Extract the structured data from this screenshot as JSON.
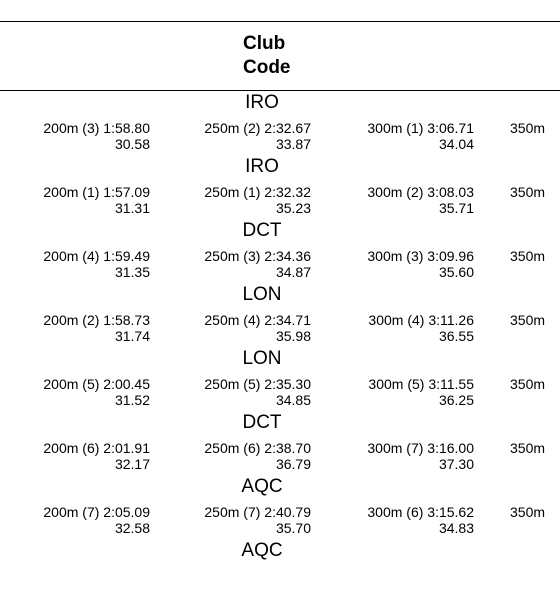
{
  "header": {
    "title": [
      "Club",
      "Code"
    ]
  },
  "rows": [
    {
      "code": "IRO",
      "splits": [
        {
          "label": "200m (3) 1:58.80",
          "lap": "30.58"
        },
        {
          "label": "250m (2) 2:32.67",
          "lap": "33.87"
        },
        {
          "label": "300m (1) 3:06.71",
          "lap": "34.04"
        },
        {
          "label": "350m"
        }
      ]
    },
    {
      "code": "IRO",
      "splits": [
        {
          "label": "200m (1) 1:57.09",
          "lap": "31.31"
        },
        {
          "label": "250m (1) 2:32.32",
          "lap": "35.23"
        },
        {
          "label": "300m (2) 3:08.03",
          "lap": "35.71"
        },
        {
          "label": "350m"
        }
      ]
    },
    {
      "code": "DCT",
      "splits": [
        {
          "label": "200m (4) 1:59.49",
          "lap": "31.35"
        },
        {
          "label": "250m (3) 2:34.36",
          "lap": "34.87"
        },
        {
          "label": "300m (3) 3:09.96",
          "lap": "35.60"
        },
        {
          "label": "350m"
        }
      ]
    },
    {
      "code": "LON",
      "splits": [
        {
          "label": "200m (2) 1:58.73",
          "lap": "31.74"
        },
        {
          "label": "250m (4) 2:34.71",
          "lap": "35.98"
        },
        {
          "label": "300m (4) 3:11.26",
          "lap": "36.55"
        },
        {
          "label": "350m"
        }
      ]
    },
    {
      "code": "LON",
      "splits": [
        {
          "label": "200m (5) 2:00.45",
          "lap": "31.52"
        },
        {
          "label": "250m (5) 2:35.30",
          "lap": "34.85"
        },
        {
          "label": "300m (5) 3:11.55",
          "lap": "36.25"
        },
        {
          "label": "350m"
        }
      ]
    },
    {
      "code": "DCT",
      "splits": [
        {
          "label": "200m (6) 2:01.91",
          "lap": "32.17"
        },
        {
          "label": "250m (6) 2:38.70",
          "lap": "36.79"
        },
        {
          "label": "300m (7) 3:16.00",
          "lap": "37.30"
        },
        {
          "label": "350m"
        }
      ]
    },
    {
      "code": "AQC",
      "splits": [
        {
          "label": "200m (7) 2:05.09",
          "lap": "32.58"
        },
        {
          "label": "250m (7) 2:40.79",
          "lap": "35.70"
        },
        {
          "label": "300m (6) 3:15.62",
          "lap": "34.83"
        },
        {
          "label": "350m"
        }
      ]
    },
    {
      "code": "AQC"
    }
  ]
}
